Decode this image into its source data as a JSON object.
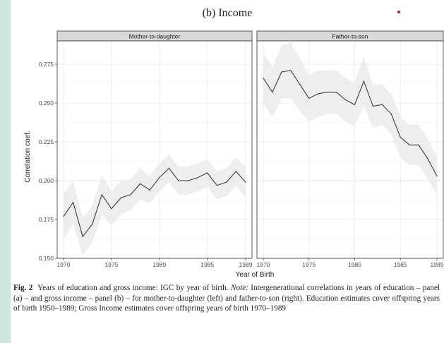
{
  "figure_title": "(b) Income",
  "caption": {
    "label": "Fig. 2",
    "text1": "Years of education and gross income: IGC by year of birth.",
    "note_label": "Note:",
    "text2": "Intergenerational correlations in years of education – panel (a) – and gross income – panel (b) – for mother-to-daughter (left) and father-to-son (right). Education estimates cover offspring years of birth 1950–1989; Gross Income estimates cover offspring years of birth 1970–1989"
  },
  "colors": {
    "line": "#3d3d3d",
    "ribbon": "#ebebeb",
    "panel_bg": "#ffffff",
    "grid": "#ebebeb",
    "strip_bg": "#d9d9d9",
    "accent_dot": "#c81e1e"
  },
  "chart_data": {
    "type": "line",
    "xlabel": "Year of Birth",
    "ylabel": "Correlation coef.",
    "xlim": [
      1970,
      1989
    ],
    "ylim": [
      0.15,
      0.29
    ],
    "x_ticks": [
      "1970",
      "1975",
      "1980",
      "1985",
      "1989"
    ],
    "x_tick_values": [
      1970,
      1975,
      1980,
      1985,
      1989
    ],
    "y_ticks": [
      "0.150",
      "0.175",
      "0.200",
      "0.225",
      "0.250",
      "0.275"
    ],
    "y_tick_values": [
      0.15,
      0.175,
      0.2,
      0.225,
      0.25,
      0.275
    ],
    "grid": true,
    "panels": [
      {
        "title": "Mother-to-daughter",
        "x": [
          1970,
          1971,
          1972,
          1973,
          1974,
          1975,
          1976,
          1977,
          1978,
          1979,
          1980,
          1981,
          1982,
          1983,
          1984,
          1985,
          1986,
          1987,
          1988,
          1989
        ],
        "values": [
          0.177,
          0.186,
          0.164,
          0.172,
          0.191,
          0.182,
          0.189,
          0.191,
          0.198,
          0.194,
          0.202,
          0.208,
          0.2,
          0.2,
          0.202,
          0.205,
          0.197,
          0.199,
          0.206,
          0.199
        ],
        "lower": [
          0.162,
          0.172,
          0.152,
          0.16,
          0.178,
          0.171,
          0.178,
          0.181,
          0.188,
          0.185,
          0.193,
          0.199,
          0.191,
          0.191,
          0.193,
          0.196,
          0.188,
          0.19,
          0.197,
          0.189
        ],
        "upper": [
          0.192,
          0.2,
          0.176,
          0.184,
          0.204,
          0.193,
          0.2,
          0.201,
          0.208,
          0.203,
          0.211,
          0.217,
          0.209,
          0.209,
          0.211,
          0.214,
          0.206,
          0.208,
          0.215,
          0.209
        ]
      },
      {
        "title": "Father-to-son",
        "x": [
          1970,
          1971,
          1972,
          1973,
          1974,
          1975,
          1976,
          1977,
          1978,
          1979,
          1980,
          1981,
          1982,
          1983,
          1984,
          1985,
          1986,
          1987,
          1988,
          1989
        ],
        "values": [
          0.266,
          0.257,
          0.27,
          0.271,
          0.262,
          0.253,
          0.256,
          0.257,
          0.257,
          0.252,
          0.249,
          0.264,
          0.248,
          0.249,
          0.243,
          0.228,
          0.223,
          0.223,
          0.214,
          0.203
        ],
        "lower": [
          0.25,
          0.241,
          0.253,
          0.253,
          0.245,
          0.238,
          0.241,
          0.243,
          0.243,
          0.238,
          0.235,
          0.248,
          0.234,
          0.236,
          0.23,
          0.215,
          0.21,
          0.21,
          0.201,
          0.191
        ],
        "upper": [
          0.282,
          0.273,
          0.287,
          0.289,
          0.279,
          0.268,
          0.271,
          0.271,
          0.271,
          0.266,
          0.263,
          0.28,
          0.262,
          0.262,
          0.256,
          0.241,
          0.236,
          0.236,
          0.227,
          0.215
        ]
      }
    ]
  }
}
